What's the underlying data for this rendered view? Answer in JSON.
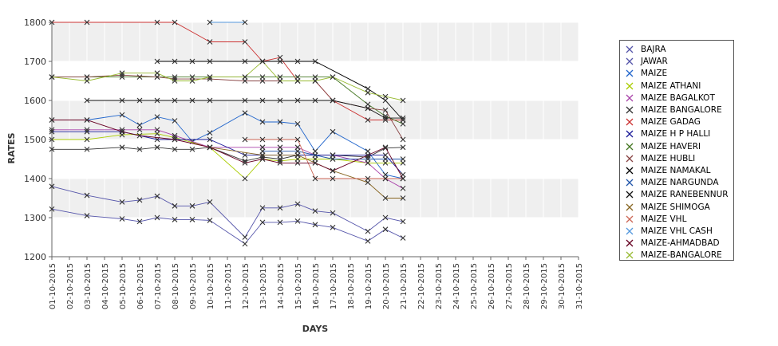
{
  "chart_data": {
    "type": "line",
    "xlabel": "DAYS",
    "ylabel": "RATES",
    "ylim": [
      1200,
      1800
    ],
    "yticks": [
      1200,
      1300,
      1400,
      1500,
      1600,
      1700,
      1800
    ],
    "categories": [
      "01-10-2015",
      "02-10-2015",
      "03-10-2015",
      "04-10-2015",
      "05-10-2015",
      "06-10-2015",
      "07-10-2015",
      "08-10-2015",
      "09-10-2015",
      "10-10-2015",
      "11-10-2015",
      "12-10-2015",
      "13-10-2015",
      "14-10-2015",
      "15-10-2015",
      "16-10-2015",
      "17-10-2015",
      "18-10-2015",
      "19-10-2015",
      "20-10-2015",
      "21-10-2015",
      "22-10-2015",
      "23-10-2015",
      "24-10-2015",
      "25-10-2015",
      "26-10-2015",
      "27-10-2015",
      "28-10-2015",
      "29-10-2015",
      "30-10-2015",
      "31-10-2015"
    ],
    "legend_position": "right",
    "series": [
      {
        "name": "BAJRA",
        "color": "#5555aa",
        "points": [
          [
            0,
            1380
          ],
          [
            2,
            1357
          ],
          [
            4,
            1340
          ],
          [
            5,
            1345
          ],
          [
            6,
            1355
          ],
          [
            7,
            1330
          ],
          [
            8,
            1330
          ],
          [
            9,
            1340
          ],
          [
            11,
            1250
          ],
          [
            12,
            1325
          ],
          [
            13,
            1325
          ],
          [
            14,
            1335
          ],
          [
            15,
            1317
          ],
          [
            16,
            1312
          ],
          [
            18,
            1265
          ],
          [
            19,
            1300
          ],
          [
            20,
            1290
          ]
        ]
      },
      {
        "name": "JAWAR",
        "color": "#5555aa",
        "points": [
          [
            0,
            1322
          ],
          [
            2,
            1305
          ],
          [
            4,
            1297
          ],
          [
            5,
            1290
          ],
          [
            6,
            1300
          ],
          [
            7,
            1295
          ],
          [
            8,
            1295
          ],
          [
            9,
            1293
          ],
          [
            11,
            1233
          ],
          [
            12,
            1288
          ],
          [
            13,
            1288
          ],
          [
            14,
            1291
          ],
          [
            15,
            1282
          ],
          [
            16,
            1275
          ],
          [
            18,
            1240
          ],
          [
            19,
            1270
          ],
          [
            20,
            1248
          ]
        ]
      },
      {
        "name": "MAIZE",
        "color": "#2266cc",
        "points": [
          [
            0,
            1550
          ],
          [
            2,
            1550
          ],
          [
            4,
            1563
          ],
          [
            5,
            1537
          ],
          [
            6,
            1558
          ],
          [
            7,
            1548
          ],
          [
            8,
            1495
          ],
          [
            9,
            1517
          ],
          [
            11,
            1568
          ],
          [
            12,
            1545
          ],
          [
            13,
            1545
          ],
          [
            14,
            1540
          ],
          [
            15,
            1470
          ],
          [
            16,
            1520
          ],
          [
            18,
            1470
          ],
          [
            19,
            1410
          ],
          [
            20,
            1400
          ]
        ]
      },
      {
        "name": "MAIZE ATHANI",
        "color": "#aacc00",
        "points": [
          [
            0,
            1500
          ],
          [
            2,
            1500
          ],
          [
            4,
            1512
          ],
          [
            6,
            1515
          ],
          [
            7,
            1505
          ],
          [
            9,
            1480
          ],
          [
            11,
            1400
          ],
          [
            12,
            1450
          ],
          [
            13,
            1445
          ],
          [
            14,
            1450
          ],
          [
            15,
            1450
          ],
          [
            16,
            1450
          ],
          [
            18,
            1440
          ],
          [
            19,
            1440
          ],
          [
            20,
            1440
          ]
        ]
      },
      {
        "name": "MAIZE BAGALKOT",
        "color": "#aa44aa",
        "points": [
          [
            0,
            1525
          ],
          [
            2,
            1525
          ],
          [
            4,
            1525
          ],
          [
            5,
            1525
          ],
          [
            6,
            1525
          ],
          [
            7,
            1510
          ],
          [
            9,
            1480
          ],
          [
            12,
            1480
          ],
          [
            13,
            1480
          ],
          [
            14,
            1480
          ],
          [
            15,
            1460
          ],
          [
            16,
            1460
          ],
          [
            18,
            1440
          ],
          [
            19,
            1400
          ],
          [
            20,
            1375
          ]
        ]
      },
      {
        "name": "MAIZE BANGALORE",
        "color": "#333333",
        "points": [
          [
            0,
            1475
          ],
          [
            2,
            1475
          ],
          [
            4,
            1480
          ],
          [
            5,
            1475
          ],
          [
            6,
            1480
          ],
          [
            7,
            1475
          ],
          [
            8,
            1475
          ],
          [
            9,
            1480
          ],
          [
            11,
            1445
          ],
          [
            12,
            1455
          ],
          [
            13,
            1450
          ],
          [
            14,
            1460
          ],
          [
            15,
            1460
          ],
          [
            16,
            1460
          ],
          [
            18,
            1455
          ],
          [
            19,
            1478
          ],
          [
            20,
            1480
          ]
        ]
      },
      {
        "name": "MAIZE GADAG",
        "color": "#cc3333",
        "points": [
          [
            0,
            1800
          ],
          [
            2,
            1800
          ],
          [
            6,
            1800
          ],
          [
            7,
            1800
          ],
          [
            9,
            1750
          ],
          [
            11,
            1750
          ],
          [
            12,
            1700
          ],
          [
            13,
            1710
          ],
          [
            14,
            1650
          ],
          [
            15,
            1650
          ],
          [
            16,
            1600
          ],
          [
            18,
            1550
          ],
          [
            19,
            1550
          ],
          [
            20,
            1550
          ]
        ]
      },
      {
        "name": "MAIZE H P HALLI",
        "color": "#1a1a99",
        "points": [
          [
            0,
            1520
          ],
          [
            2,
            1520
          ],
          [
            4,
            1520
          ],
          [
            6,
            1500
          ],
          [
            7,
            1500
          ],
          [
            9,
            1500
          ],
          [
            11,
            1460
          ],
          [
            12,
            1460
          ],
          [
            13,
            1460
          ],
          [
            14,
            1460
          ],
          [
            15,
            1460
          ],
          [
            16,
            1460
          ],
          [
            18,
            1460
          ],
          [
            19,
            1460
          ],
          [
            20,
            1410
          ]
        ]
      },
      {
        "name": "MAIZE HAVERI",
        "color": "#447722",
        "points": [
          [
            0,
            1660
          ],
          [
            2,
            1660
          ],
          [
            4,
            1660
          ],
          [
            5,
            1660
          ],
          [
            6,
            1660
          ],
          [
            7,
            1660
          ],
          [
            8,
            1660
          ],
          [
            9,
            1660
          ],
          [
            11,
            1660
          ],
          [
            12,
            1660
          ],
          [
            13,
            1660
          ],
          [
            14,
            1660
          ],
          [
            15,
            1660
          ],
          [
            16,
            1660
          ],
          [
            18,
            1590
          ],
          [
            19,
            1560
          ],
          [
            20,
            1540
          ]
        ]
      },
      {
        "name": "MAIZE HUBLI",
        "color": "#884444",
        "points": [
          [
            0,
            1660
          ],
          [
            2,
            1660
          ],
          [
            4,
            1665
          ],
          [
            6,
            1660
          ],
          [
            7,
            1655
          ],
          [
            9,
            1655
          ],
          [
            11,
            1650
          ],
          [
            12,
            1650
          ],
          [
            13,
            1650
          ],
          [
            14,
            1650
          ],
          [
            15,
            1650
          ],
          [
            16,
            1600
          ],
          [
            18,
            1580
          ],
          [
            19,
            1575
          ],
          [
            20,
            1500
          ]
        ]
      },
      {
        "name": "MAIZE NAMAKAL",
        "color": "#000000",
        "points": [
          [
            6,
            1700
          ],
          [
            7,
            1700
          ],
          [
            8,
            1700
          ],
          [
            9,
            1700
          ],
          [
            11,
            1700
          ],
          [
            12,
            1700
          ],
          [
            13,
            1700
          ],
          [
            14,
            1700
          ],
          [
            15,
            1700
          ],
          [
            18,
            1630
          ],
          [
            19,
            1600
          ],
          [
            20,
            1550
          ]
        ]
      },
      {
        "name": "MAIZE NARGUNDA",
        "color": "#2255aa",
        "points": [
          [
            12,
            1470
          ],
          [
            13,
            1470
          ],
          [
            14,
            1470
          ],
          [
            16,
            1450
          ],
          [
            18,
            1450
          ],
          [
            19,
            1450
          ],
          [
            20,
            1450
          ]
        ]
      },
      {
        "name": "MAIZE RANEBENNUR",
        "color": "#111111",
        "points": [
          [
            2,
            1600
          ],
          [
            4,
            1600
          ],
          [
            5,
            1600
          ],
          [
            6,
            1600
          ],
          [
            7,
            1600
          ],
          [
            8,
            1600
          ],
          [
            9,
            1600
          ],
          [
            11,
            1600
          ],
          [
            12,
            1600
          ],
          [
            13,
            1600
          ],
          [
            14,
            1600
          ],
          [
            15,
            1600
          ],
          [
            16,
            1600
          ],
          [
            18,
            1580
          ],
          [
            19,
            1555
          ],
          [
            20,
            1555
          ]
        ]
      },
      {
        "name": "MAIZE SHIMOGA",
        "color": "#886622",
        "points": [
          [
            9,
            1480
          ],
          [
            12,
            1460
          ],
          [
            13,
            1460
          ],
          [
            14,
            1460
          ],
          [
            15,
            1440
          ],
          [
            16,
            1420
          ],
          [
            18,
            1390
          ],
          [
            19,
            1350
          ],
          [
            20,
            1350
          ]
        ]
      },
      {
        "name": "MAIZE VHL",
        "color": "#cc6655",
        "points": [
          [
            11,
            1500
          ],
          [
            12,
            1500
          ],
          [
            13,
            1500
          ],
          [
            14,
            1500
          ],
          [
            15,
            1400
          ],
          [
            16,
            1400
          ],
          [
            18,
            1400
          ],
          [
            19,
            1400
          ],
          [
            20,
            1400
          ]
        ]
      },
      {
        "name": "MAIZE VHL CASH",
        "color": "#5599dd",
        "points": [
          [
            9,
            1800
          ],
          [
            11,
            1800
          ]
        ]
      },
      {
        "name": "MAIZE-AHMADBAD",
        "color": "#660022",
        "points": [
          [
            0,
            1550
          ],
          [
            2,
            1550
          ],
          [
            4,
            1520
          ],
          [
            5,
            1510
          ],
          [
            7,
            1500
          ],
          [
            9,
            1480
          ],
          [
            11,
            1440
          ],
          [
            12,
            1450
          ],
          [
            13,
            1440
          ],
          [
            14,
            1440
          ],
          [
            15,
            1440
          ],
          [
            16,
            1420
          ],
          [
            18,
            1460
          ],
          [
            19,
            1480
          ],
          [
            20,
            1400
          ]
        ]
      },
      {
        "name": "MAIZE-BANGALORE",
        "color": "#99bb33",
        "points": [
          [
            0,
            1660
          ],
          [
            2,
            1650
          ],
          [
            4,
            1670
          ],
          [
            6,
            1670
          ],
          [
            7,
            1650
          ],
          [
            8,
            1650
          ],
          [
            9,
            1660
          ],
          [
            11,
            1660
          ],
          [
            12,
            1700
          ],
          [
            13,
            1650
          ],
          [
            14,
            1650
          ],
          [
            15,
            1650
          ],
          [
            16,
            1660
          ],
          [
            18,
            1620
          ],
          [
            19,
            1610
          ],
          [
            20,
            1600
          ]
        ]
      }
    ]
  }
}
